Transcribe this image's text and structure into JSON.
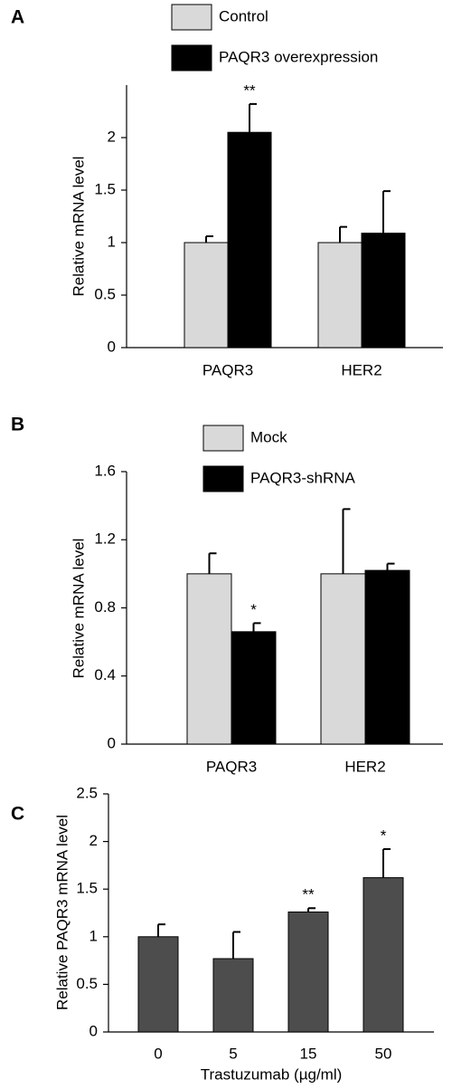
{
  "chart_data": [
    {
      "type": "bar",
      "panel": "A",
      "ylabel": "Relative mRNA level",
      "categories": [
        "PAQR3",
        "HER2"
      ],
      "series": [
        {
          "name": "Control",
          "color": "#d9d9d9",
          "values": [
            1.0,
            1.0
          ],
          "errors": [
            0.06,
            0.15
          ],
          "significance": [
            null,
            null
          ]
        },
        {
          "name": "PAQR3 overexpression",
          "color": "#000000",
          "values": [
            2.05,
            1.09
          ],
          "errors": [
            0.27,
            0.4
          ],
          "significance": [
            "**",
            null
          ]
        }
      ],
      "ylim": [
        0,
        2.5
      ],
      "yticks": [
        0,
        0.5,
        1,
        1.5,
        2
      ],
      "legend": "top"
    },
    {
      "type": "bar",
      "panel": "B",
      "ylabel": "Relative mRNA level",
      "categories": [
        "PAQR3",
        "HER2"
      ],
      "series": [
        {
          "name": "Mock",
          "color": "#d9d9d9",
          "values": [
            1.0,
            1.0
          ],
          "errors": [
            0.12,
            0.38
          ],
          "significance": [
            null,
            null
          ]
        },
        {
          "name": "PAQR3-shRNA",
          "color": "#000000",
          "values": [
            0.66,
            1.02
          ],
          "errors": [
            0.05,
            0.04
          ],
          "significance": [
            "*",
            null
          ]
        }
      ],
      "ylim": [
        0,
        1.6
      ],
      "yticks": [
        0,
        {
          "value": 0.4,
          "label": "0.4"
        },
        {
          "value": 0.8,
          "label": "0.8"
        },
        {
          "value": 1.2,
          "label": "1.2"
        },
        {
          "value": 1.6,
          "label": "1.6"
        }
      ],
      "legend": "top"
    },
    {
      "type": "bar",
      "panel": "C",
      "ylabel": "Relative PAQR3 mRNA level",
      "xlabel": "Trastuzumab (µg/ml)",
      "categories": [
        "0",
        "5",
        "15",
        "50"
      ],
      "series": [
        {
          "color": "#4d4d4d",
          "values": [
            1.0,
            0.77,
            1.26,
            1.62
          ],
          "errors": [
            0.13,
            0.28,
            0.04,
            0.3
          ],
          "significance": [
            null,
            null,
            "**",
            "*"
          ]
        }
      ],
      "ylim": [
        0,
        2.5
      ],
      "yticks": [
        0,
        0.5,
        1,
        1.5,
        2,
        2.5
      ]
    }
  ]
}
